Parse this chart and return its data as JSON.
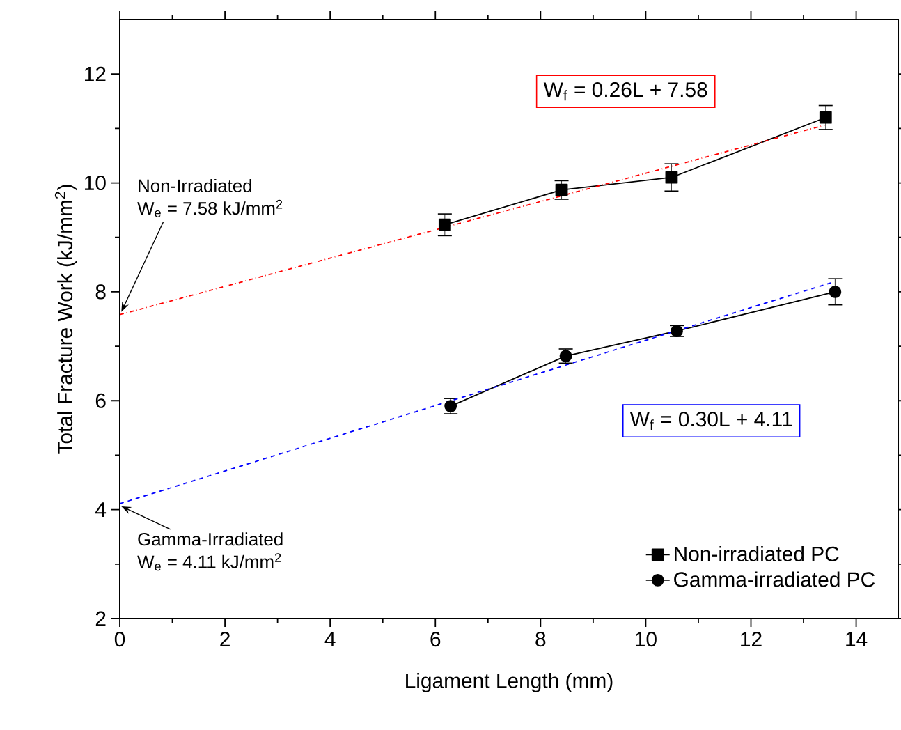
{
  "chart_data": {
    "type": "line",
    "xlabel": "Ligament Length (mm)",
    "ylabel": "Total Fracture Work (kJ/mm$^{2}$)",
    "xlim": [
      0,
      14.8
    ],
    "ylim": [
      2,
      13
    ],
    "xticks": [
      0,
      2,
      4,
      6,
      8,
      10,
      12,
      14
    ],
    "yticks": [
      2,
      4,
      6,
      8,
      10,
      12
    ],
    "legend": "bottom right",
    "grid": false,
    "series": [
      {
        "name": "Non-irradiated PC",
        "color": "#000000",
        "marker": "square",
        "line_style": "solid",
        "x": [
          6.18,
          8.4,
          10.49,
          13.42
        ],
        "values": [
          9.23,
          9.87,
          10.1,
          11.2
        ],
        "errors": [
          0.2,
          0.17,
          0.25,
          0.22
        ]
      },
      {
        "name": "Gamma-irradiated PC",
        "color": "#000000",
        "marker": "circle",
        "line_style": "solid",
        "x": [
          6.29,
          8.48,
          10.59,
          13.6
        ],
        "values": [
          5.9,
          6.82,
          7.28,
          8.0
        ],
        "errors": [
          0.14,
          0.13,
          0.1,
          0.24
        ]
      },
      {
        "name": "W$_{f}$ = 0.26L + 7.58",
        "color": "#ff0000",
        "marker": "none",
        "line_style": "dashdot",
        "x": [
          0,
          13.4
        ],
        "values": [
          7.58,
          11.06
        ]
      },
      {
        "name": "W$_{f}$ = 0.30L + 4.11",
        "color": "#0000ff",
        "marker": "none",
        "line_style": "dashed",
        "x": [
          0,
          13.6
        ],
        "values": [
          4.11,
          8.19
        ]
      }
    ],
    "annotations": [
      "Non-Irradiated",
      {
        "text": "W$_{e}$ = 7.58 kJ/mm$^{2}$",
        "x": 0,
        "y": 7.58
      },
      {
        "text": "Gamma-Irradiated",
        "x": 0,
        "y": 4.11
      },
      "W$_{e}$ = 4.11 kJ/mm$^{2}$"
    ]
  }
}
